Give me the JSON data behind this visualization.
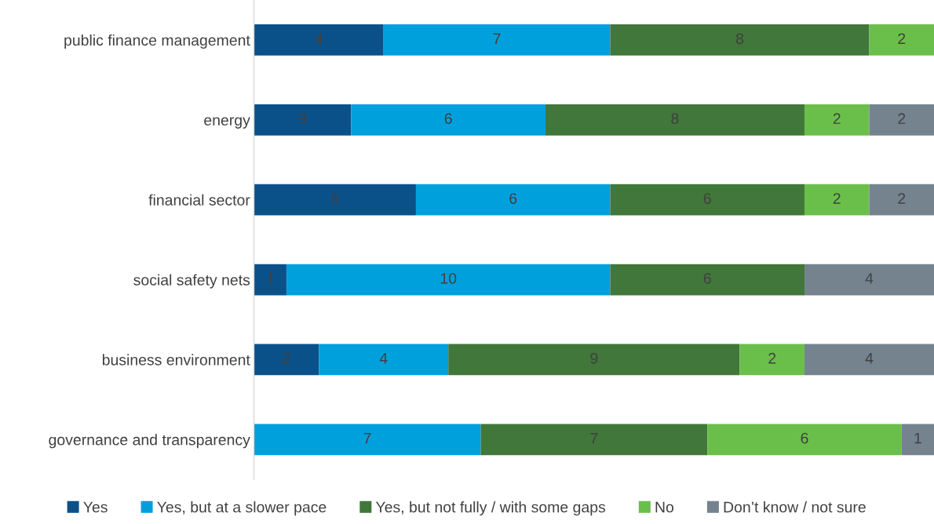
{
  "chart_data": {
    "type": "bar",
    "orientation": "horizontal",
    "stacked": true,
    "data_labels": true,
    "legend": "bottom",
    "grid": false,
    "tick_labels": "y",
    "categories": [
      "public finance management",
      "energy",
      "financial sector",
      "social safety nets",
      "business environment",
      "governance and transparency"
    ],
    "series": [
      {
        "name": "Yes",
        "color": "#0b5189",
        "values": [
          4,
          3,
          5,
          1,
          2,
          null
        ]
      },
      {
        "name": "Yes, but at a slower pace",
        "color": "#00a0dc",
        "values": [
          7,
          6,
          6,
          10,
          4,
          7
        ]
      },
      {
        "name": "Yes, but not fully / with some gaps",
        "color": "#41773a",
        "values": [
          8,
          8,
          6,
          6,
          9,
          7
        ]
      },
      {
        "name": "No",
        "color": "#6abf4b",
        "values": [
          2,
          2,
          2,
          null,
          2,
          6
        ]
      },
      {
        "name": "Don’t know / not sure",
        "color": "#75838f",
        "values": [
          null,
          2,
          2,
          4,
          4,
          1
        ]
      }
    ]
  }
}
